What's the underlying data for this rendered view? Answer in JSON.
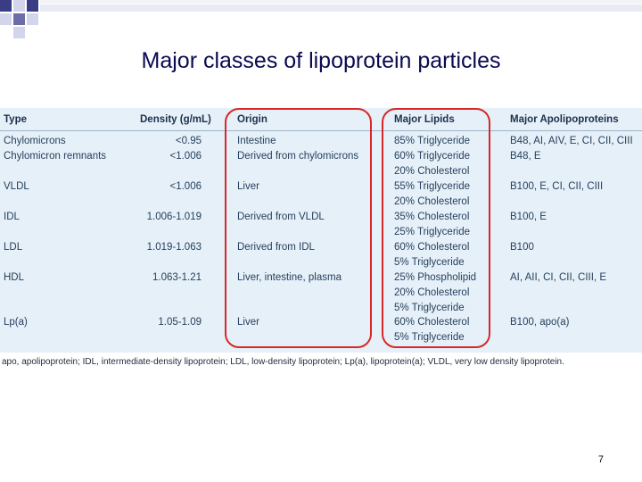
{
  "slide": {
    "title": "Major classes of lipoprotein particles",
    "page_number": "7"
  },
  "table": {
    "headers": [
      "Type",
      "Density (g/mL)",
      "Origin",
      "Major Lipids",
      "Major Apolipoproteins"
    ],
    "rows": [
      {
        "type": "Chylomicrons",
        "density": "<0.95",
        "origin": "Intestine",
        "lipids": [
          "85% Triglyceride"
        ],
        "apos": "B48, AI, AIV, E, CI, CII, CIII"
      },
      {
        "type": "Chylomicron remnants",
        "density": "<1.006",
        "origin": "Derived from chylomicrons",
        "lipids": [
          "60% Triglyceride",
          "20% Cholesterol"
        ],
        "apos": "B48, E"
      },
      {
        "type": "VLDL",
        "density": "<1.006",
        "origin": "Liver",
        "lipids": [
          "55% Triglyceride",
          "20% Cholesterol"
        ],
        "apos": "B100, E, CI, CII, CIII"
      },
      {
        "type": "IDL",
        "density": "1.006-1.019",
        "origin": "Derived from VLDL",
        "lipids": [
          "35% Cholesterol",
          "25% Triglyceride"
        ],
        "apos": "B100, E"
      },
      {
        "type": "LDL",
        "density": "1.019-1.063",
        "origin": "Derived from IDL",
        "lipids": [
          "60% Cholesterol",
          "5% Triglyceride"
        ],
        "apos": "B100"
      },
      {
        "type": "HDL",
        "density": "1.063-1.21",
        "origin": "Liver, intestine, plasma",
        "lipids": [
          "25% Phospholipid",
          "20% Cholesterol",
          "5% Triglyceride"
        ],
        "apos": "AI, AII, CI, CII, CIII, E"
      },
      {
        "type": "Lp(a)",
        "density": "1.05-1.09",
        "origin": "Liver",
        "lipids": [
          "60% Cholesterol",
          "5% Triglyceride"
        ],
        "apos": "B100, apo(a)"
      }
    ],
    "footnote": "apo, apolipoprotein; IDL, intermediate-density lipoprotein; LDL, low-density lipoprotein; Lp(a), lipoprotein(a); VLDL, very low density lipoprotein."
  },
  "colors": {
    "title": "#0a0a50",
    "table_background": "#e6f0f8",
    "highlight_oval": "#d62828",
    "decor_square_dark": "#3a3d86",
    "decor_square_light": "#d3d5ea"
  }
}
